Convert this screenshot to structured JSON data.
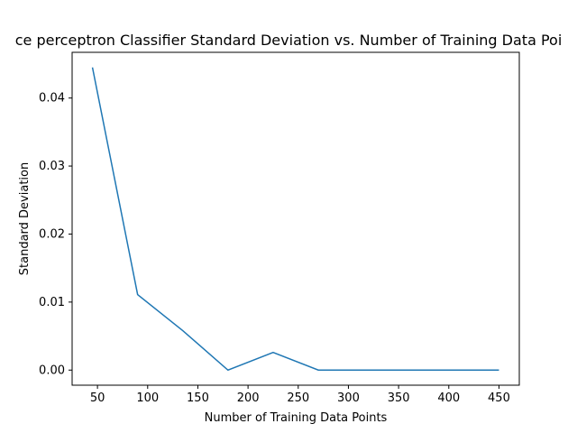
{
  "chart_data": {
    "type": "line",
    "title": "ce perceptron Classifier   Standard Deviation vs. Number of Training Data Poi",
    "xlabel": "Number of Training Data Points",
    "ylabel": "Standard Deviation",
    "x": [
      45,
      90,
      135,
      180,
      225,
      270,
      315,
      360,
      405,
      450
    ],
    "series": [
      {
        "values": [
          0.0445,
          0.0111,
          0.0058,
          0.0,
          0.0026,
          0.0,
          0.0,
          0.0,
          0.0,
          0.0
        ]
      }
    ],
    "xlim": [
      24.75,
      470.25
    ],
    "ylim": [
      -0.00222,
      0.04672
    ],
    "xticks": [
      50,
      100,
      150,
      200,
      250,
      300,
      350,
      400,
      450
    ],
    "yticks": [
      0.0,
      0.01,
      0.02,
      0.03,
      0.04
    ],
    "xtick_labels": [
      "50",
      "100",
      "150",
      "200",
      "250",
      "300",
      "350",
      "400",
      "450"
    ],
    "ytick_labels": [
      "0.00",
      "0.01",
      "0.02",
      "0.03",
      "0.04"
    ],
    "grid": false,
    "colors": {
      "line": "#1f77b4",
      "axes": "#000000",
      "background": "#ffffff"
    }
  }
}
